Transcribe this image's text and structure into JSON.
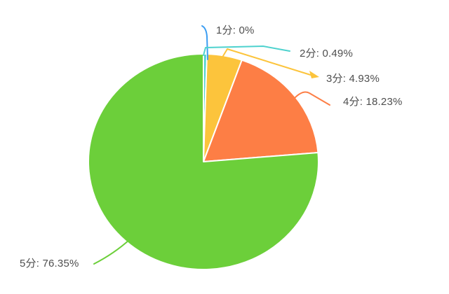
{
  "chart_data": {
    "type": "pie",
    "title": "",
    "legend_position": "none",
    "label_style": "outside-leader-lines",
    "background_color": "#ffffff",
    "label_text_color": "#4e4e4e",
    "start_angle": "top",
    "direction": "clockwise",
    "categories": [
      "1分",
      "2分",
      "3分",
      "4分",
      "5分"
    ],
    "values": [
      0,
      0.49,
      4.93,
      18.23,
      76.35
    ],
    "unit": "%",
    "slices": [
      {
        "label": "1分",
        "value": 0,
        "display_label": "1分: 0%",
        "color": "#3b9df2"
      },
      {
        "label": "2分",
        "value": 0.49,
        "display_label": "2分: 0.49%",
        "color": "#4ed2ce"
      },
      {
        "label": "3分",
        "value": 4.93,
        "display_label": "3分: 4.93%",
        "color": "#fcc43c"
      },
      {
        "label": "4分",
        "value": 18.23,
        "display_label": "4分: 18.23%",
        "color": "#fd7e45"
      },
      {
        "label": "5分",
        "value": 76.35,
        "display_label": "5分: 76.35%",
        "color": "#6ccf3a"
      }
    ]
  }
}
